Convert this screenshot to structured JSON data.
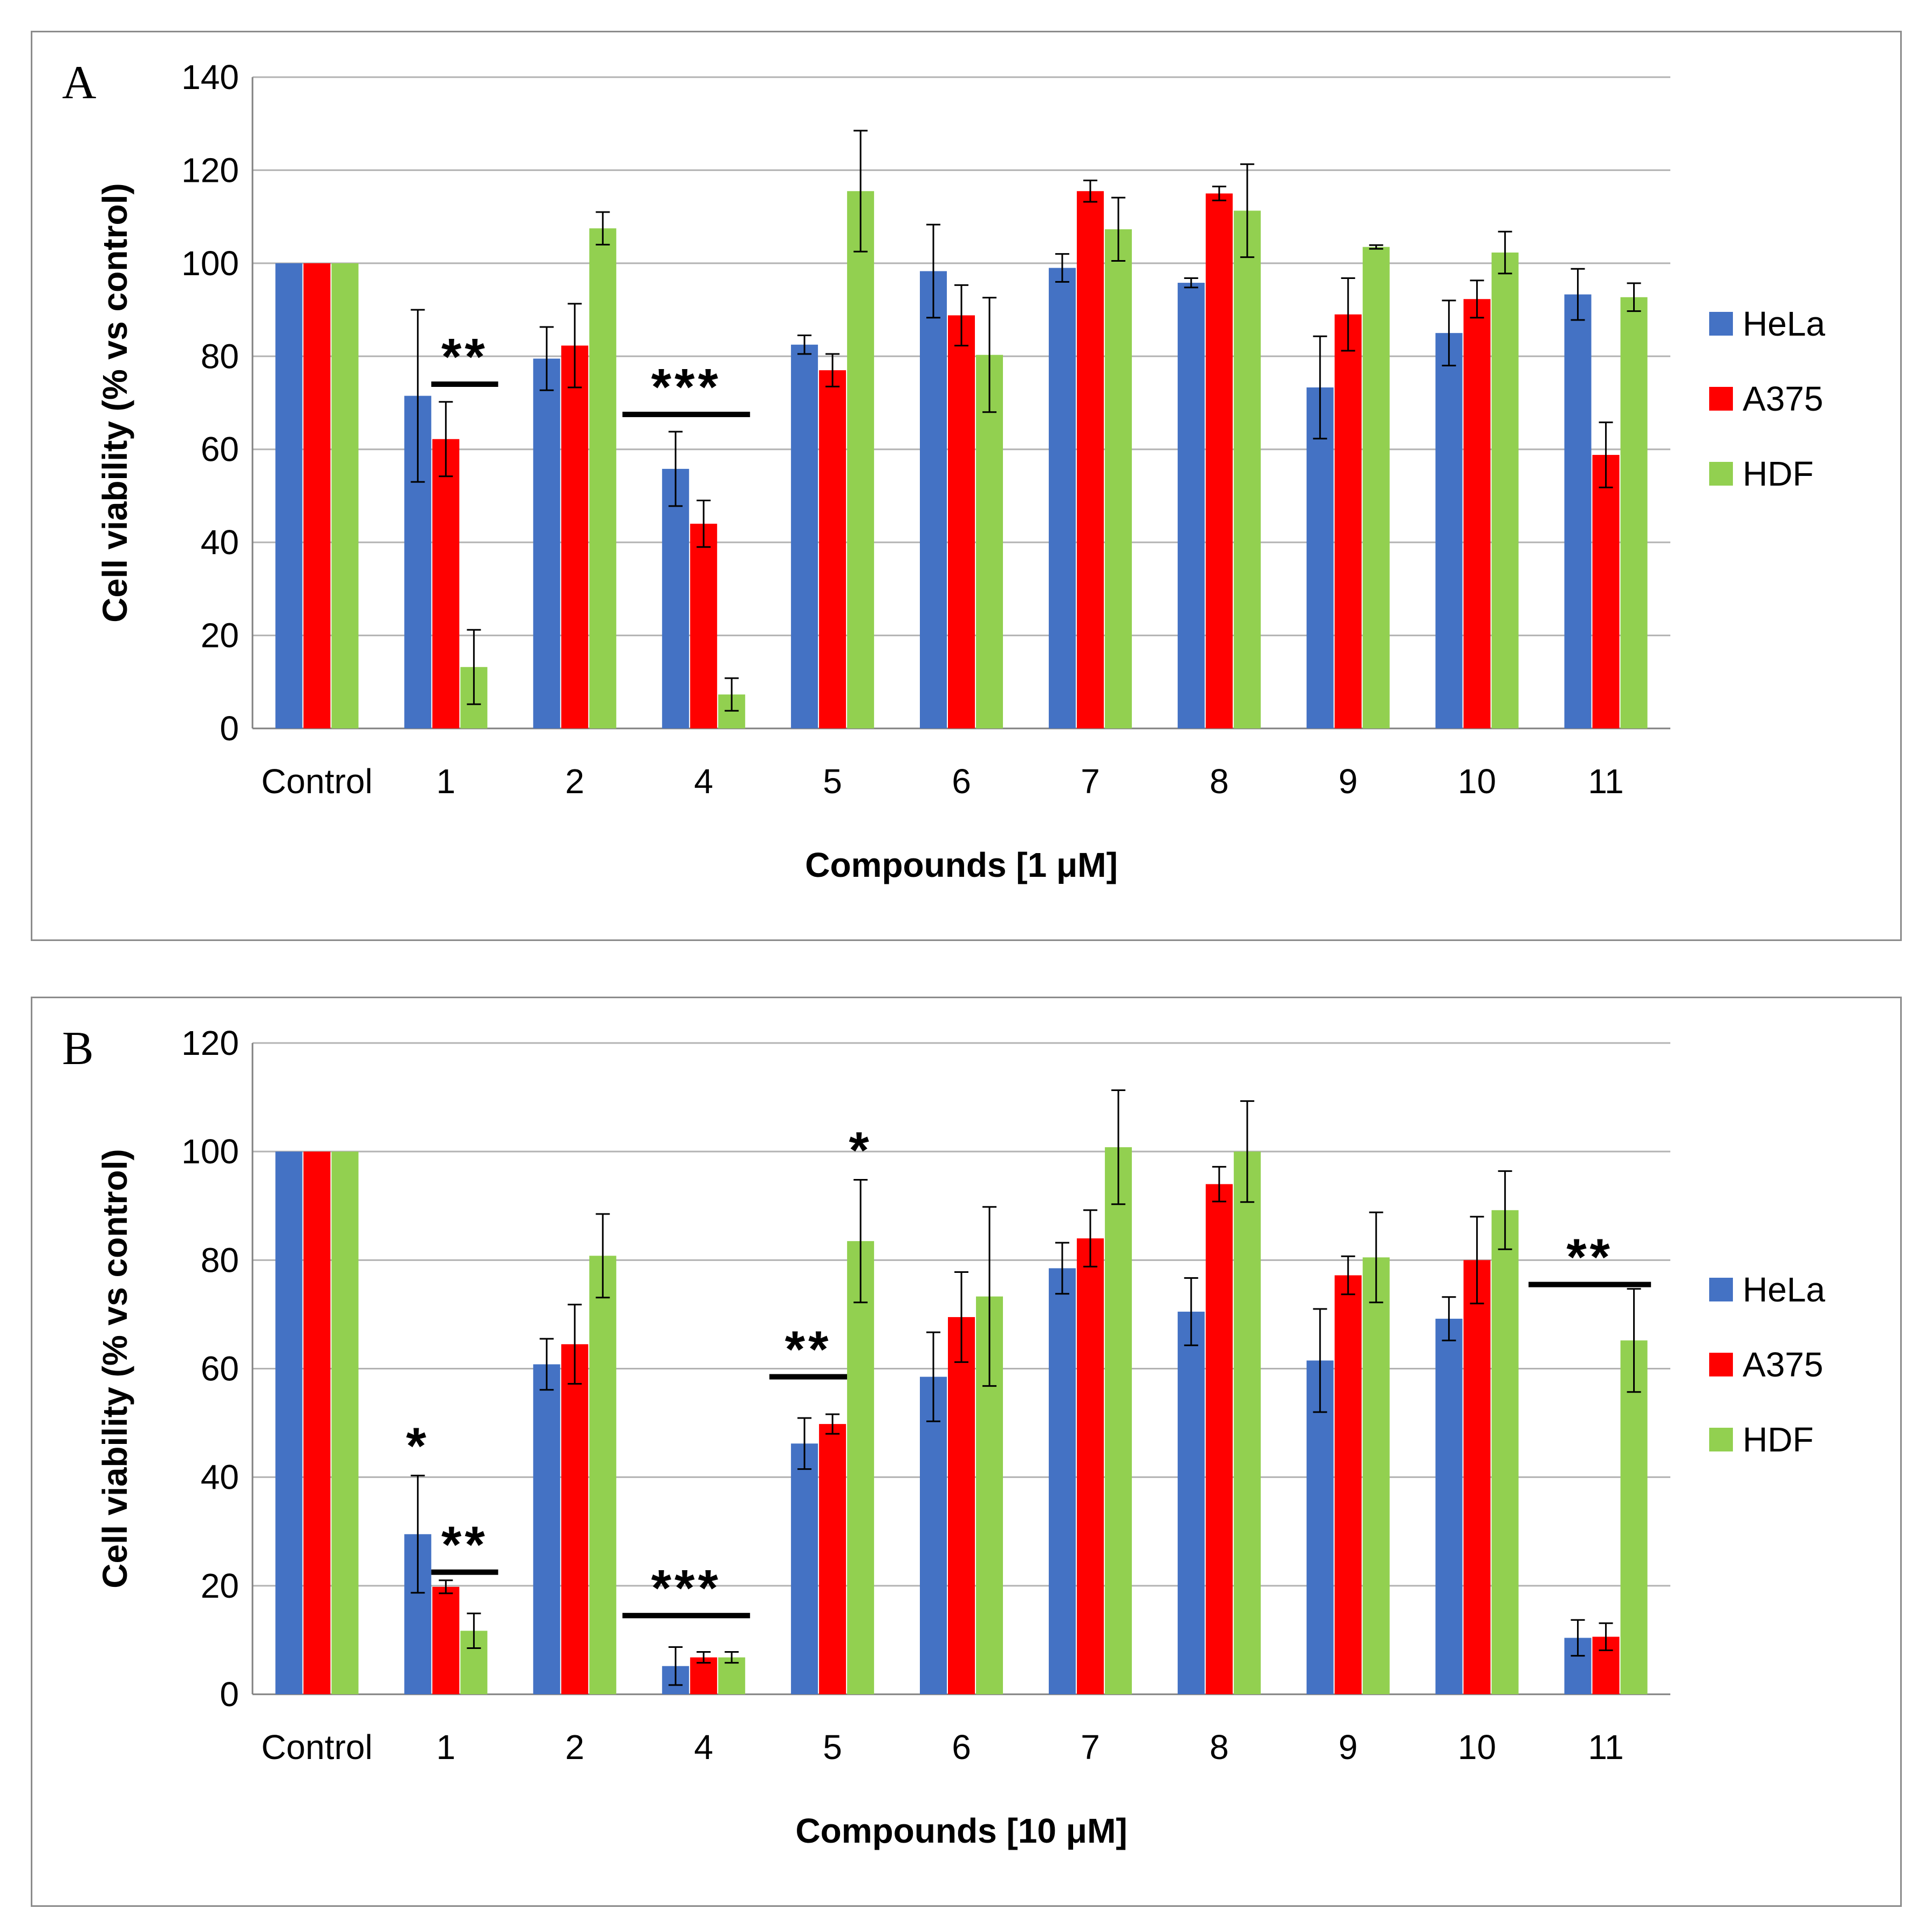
{
  "colors": {
    "HeLa": "#4472C4",
    "A375": "#FF0000",
    "HDF": "#92D050",
    "grid": "#b3b3b3",
    "axis": "#808080"
  },
  "chart_data": [
    {
      "panel": "A",
      "type": "bar",
      "ylabel": "Cell viability (% vs control)",
      "xlabel": "Compounds [1 μM]",
      "ylim": [
        0,
        140
      ],
      "yticks": [
        0,
        20,
        40,
        60,
        80,
        100,
        120,
        140
      ],
      "categories": [
        "Control",
        "1",
        "2",
        "4",
        "5",
        "6",
        "7",
        "8",
        "9",
        "10",
        "11"
      ],
      "legend": [
        "HeLa",
        "A375",
        "HDF"
      ],
      "legend_position": "right",
      "series": [
        {
          "name": "HeLa",
          "values": [
            100,
            71.5,
            79.5,
            55.8,
            82.5,
            98.3,
            99,
            95.8,
            73.3,
            85,
            93.3
          ],
          "errors": [
            0,
            18.5,
            6.8,
            8,
            2,
            10,
            3,
            1,
            11,
            7,
            5.5
          ]
        },
        {
          "name": "A375",
          "values": [
            100,
            62.2,
            82.3,
            44,
            77,
            88.8,
            115.5,
            115,
            89,
            92.3,
            58.8
          ],
          "errors": [
            0,
            8,
            9,
            5,
            3.5,
            6.5,
            2.3,
            1.5,
            7.8,
            4,
            7
          ]
        },
        {
          "name": "HDF",
          "values": [
            100,
            13.2,
            107.5,
            7.3,
            115.5,
            80.3,
            107.3,
            111.3,
            103.5,
            102.3,
            92.7
          ],
          "errors": [
            0,
            8,
            3.5,
            3.5,
            13,
            12.3,
            6.8,
            10,
            0.4,
            4.5,
            3
          ]
        }
      ],
      "significance": [
        {
          "label": "**",
          "from": "1",
          "to": "1",
          "y": 74
        },
        {
          "label": "***",
          "from": "4",
          "to": "4",
          "y": 67.5
        }
      ]
    },
    {
      "panel": "B",
      "type": "bar",
      "ylabel": "Cell viability (% vs control)",
      "xlabel": "Compounds  [10 μM]",
      "ylim": [
        0,
        120
      ],
      "yticks": [
        0,
        20,
        40,
        60,
        80,
        100,
        120
      ],
      "categories": [
        "Control",
        "1",
        "2",
        "4",
        "5",
        "6",
        "7",
        "8",
        "9",
        "10",
        "11"
      ],
      "legend": [
        "HeLa",
        "A375",
        "HDF"
      ],
      "legend_position": "right",
      "series": [
        {
          "name": "HeLa",
          "values": [
            100,
            29.5,
            60.8,
            5.2,
            46.2,
            58.5,
            78.5,
            70.5,
            61.5,
            69.2,
            10.4
          ],
          "errors": [
            0,
            10.8,
            4.7,
            3.5,
            4.7,
            8.2,
            4.7,
            6.2,
            9.5,
            4,
            3.3
          ]
        },
        {
          "name": "A375",
          "values": [
            100,
            19.8,
            64.5,
            6.8,
            49.8,
            69.5,
            84,
            94,
            77.2,
            80,
            10.6
          ],
          "errors": [
            0,
            1.2,
            7.3,
            1,
            1.8,
            8.3,
            5.2,
            3.2,
            3.5,
            8,
            2.5
          ]
        },
        {
          "name": "HDF",
          "values": [
            100,
            11.7,
            80.8,
            6.8,
            83.5,
            73.3,
            100.8,
            100,
            80.5,
            89.2,
            65.2
          ],
          "errors": [
            0,
            3.2,
            7.7,
            1,
            11.3,
            16.5,
            10.5,
            9.3,
            8.3,
            7.2,
            9.5
          ]
        }
      ],
      "significance": [
        {
          "label": "*",
          "over": "1",
          "series": "HeLa"
        },
        {
          "label": "**",
          "from": "1",
          "to": "1",
          "y": 22.5
        },
        {
          "label": "***",
          "from": "4",
          "to": "4",
          "y": 14.5
        },
        {
          "label": "**",
          "from": "5",
          "to": "5",
          "y": 58.5
        },
        {
          "label": "*",
          "over": "5",
          "series": "HDF"
        },
        {
          "label": "**",
          "from": "11",
          "to": "11",
          "y": 75.5
        }
      ]
    }
  ]
}
